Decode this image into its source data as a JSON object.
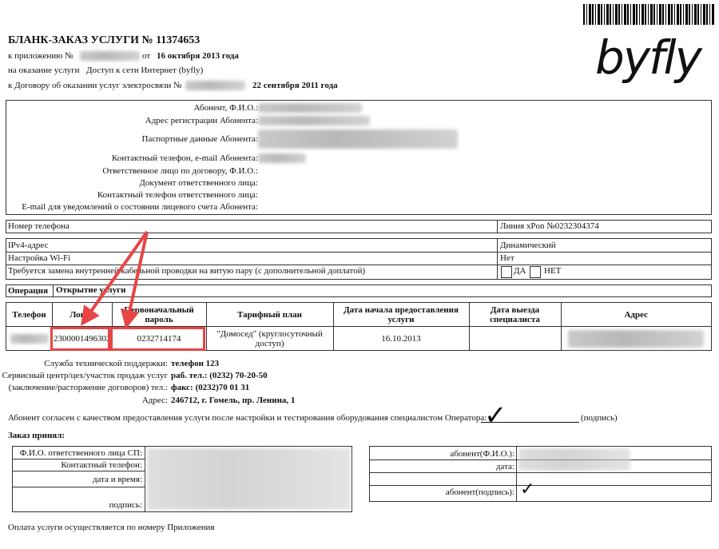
{
  "header": {
    "title": "БЛАНК-ЗАКАЗ УСЛУГИ № 11374653",
    "appendix_label": "к приложению №",
    "from_label": "от",
    "appendix_date": "16 октября 2013 года",
    "service_label": "на оказание услуги",
    "service_name": "Доступ к сети Интернет (byfly)",
    "contract_label": "к Договору об оказании услуг электросвязи №",
    "contract_date": "22 сентября 2011 года",
    "logo": "byfly"
  },
  "subscriber": {
    "labels": [
      "Абонент, Ф.И.О.:",
      "Адрес регистрации Абонента:",
      "Паспортные данные Абонента:",
      "Контактный телефон, e-mail Абонента:",
      "Ответственное лицо по договору, Ф.И.О.:",
      "Документ ответственного лица:",
      "Контактный телефон ответственного лица:",
      "E-mail для уведомлений о состоянии лицевого счета Абонента:"
    ]
  },
  "phone": {
    "label": "Номер телефона",
    "value": "Линия xPon №0232304374"
  },
  "options": [
    {
      "label": "IPv4-адрес",
      "value": "Динамический"
    },
    {
      "label": "Настройка Wi-Fi",
      "value": "Нет"
    },
    {
      "label": "Требуется замена внутренней кабельной проводки на витую пару (с дополнительной доплатой)",
      "yes": "ДА",
      "no": "НЕТ"
    }
  ],
  "operation": {
    "label": "Операция",
    "value": "Открытие услуги"
  },
  "main_table": {
    "headers": [
      "Телефон",
      "Логин",
      "Первоначальный пароль",
      "Тарифный план",
      "Дата начала предоставления услуги",
      "Дата выезда специалиста",
      "Адрес"
    ],
    "row": {
      "login": "2300001496302",
      "password": "0232714174",
      "plan": "\"Домосед\" (круглосуточный доступ)",
      "start_date": "16.10.2013",
      "visit_date": ""
    }
  },
  "support": {
    "l1": "Служба технической поддержки:",
    "v1": "телефон 123",
    "l2": "Сервисный центр/цех/участок продаж услуг",
    "v2": "раб. тел.: (0232) 70-20-50",
    "l3": "(заключение/расторжение договоров) тел.:",
    "v3": "факс: (0232)70 01 31",
    "l4": "Адрес:",
    "v4": "246712, г. Гомель, пр. Ленина, 1"
  },
  "agreement": {
    "text": "Абонент согласен с качеством предоставления услуги после настройки и тестирования оборудования специалистом Оператора:",
    "sign": "(подпись)"
  },
  "accepted": {
    "title": "Заказ принял:",
    "left": [
      "Ф.И.О. ответственного лица СП:",
      "Контактный телефон:",
      "дата и время:",
      "подпись:"
    ],
    "right": [
      "абонент(Ф.И.О.):",
      "дата:",
      "абонент(подпись):"
    ]
  },
  "footer": "Оплата услуги осуществляется по номеру Приложения",
  "annotation_color": "#e84545"
}
